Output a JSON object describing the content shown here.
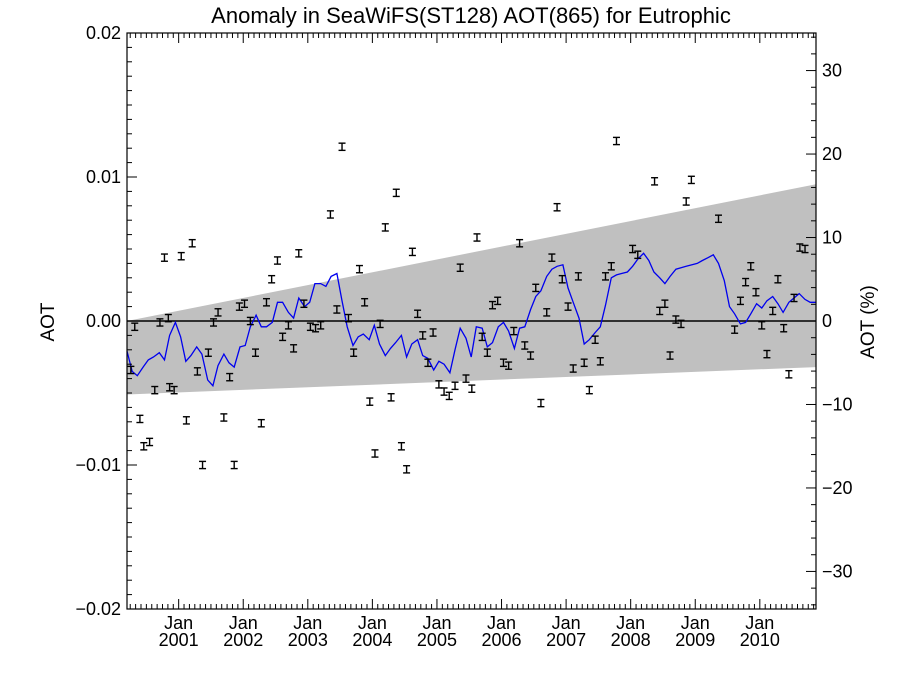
{
  "chart_data": {
    "type": "scatter",
    "title": "Anomaly in SeaWiFS(ST128) AOT(865) for Eutrophic",
    "ylabel": "AOT",
    "ylabel_right": "AOT (%)",
    "xlabel": "",
    "xlim": [
      2000.2,
      2010.87
    ],
    "ylim": [
      -0.02,
      0.02
    ],
    "ylim_right": [
      -34.5,
      34.5
    ],
    "x_ticks": [
      {
        "x": 2001.0,
        "label_top": "Jan",
        "label_bottom": "2001"
      },
      {
        "x": 2002.0,
        "label_top": "Jan",
        "label_bottom": "2002"
      },
      {
        "x": 2003.0,
        "label_top": "Jan",
        "label_bottom": "2003"
      },
      {
        "x": 2004.0,
        "label_top": "Jan",
        "label_bottom": "2004"
      },
      {
        "x": 2005.0,
        "label_top": "Jan",
        "label_bottom": "2005"
      },
      {
        "x": 2006.0,
        "label_top": "Jan",
        "label_bottom": "2006"
      },
      {
        "x": 2007.0,
        "label_top": "Jan",
        "label_bottom": "2007"
      },
      {
        "x": 2008.0,
        "label_top": "Jan",
        "label_bottom": "2008"
      },
      {
        "x": 2009.0,
        "label_top": "Jan",
        "label_bottom": "2009"
      },
      {
        "x": 2010.0,
        "label_top": "Jan",
        "label_bottom": "2010"
      }
    ],
    "y_ticks_left": [
      {
        "value": 0.02,
        "label": "0.02"
      },
      {
        "value": 0.01,
        "label": "0.01"
      },
      {
        "value": 0.0,
        "label": "0.00"
      },
      {
        "value": -0.01,
        "label": "−0.01"
      },
      {
        "value": -0.02,
        "label": "−0.02"
      }
    ],
    "y_ticks_right": [
      {
        "value": 30,
        "label": "30"
      },
      {
        "value": 20,
        "label": "20"
      },
      {
        "value": 10,
        "label": "10"
      },
      {
        "value": 0,
        "label": "0"
      },
      {
        "value": -10,
        "label": "−10"
      },
      {
        "value": -20,
        "label": "−20"
      },
      {
        "value": -30,
        "label": "−30"
      }
    ],
    "band": {
      "color": "#c0c0c0",
      "upper": [
        [
          2000.2,
          0.0
        ],
        [
          2010.87,
          0.0095
        ]
      ],
      "lower": [
        [
          2000.2,
          -0.0051
        ],
        [
          2010.87,
          -0.0032
        ]
      ]
    },
    "zero_line": 0.0,
    "points_series": {
      "color": "#000000",
      "points": [
        [
          2000.26,
          -0.0034
        ],
        [
          2000.32,
          -0.0004
        ],
        [
          2000.4,
          -0.0068
        ],
        [
          2000.46,
          -0.0087
        ],
        [
          2000.55,
          -0.0084
        ],
        [
          2000.63,
          -0.0048
        ],
        [
          2000.71,
          -0.0001
        ],
        [
          2000.78,
          0.0044
        ],
        [
          2000.84,
          0.0002
        ],
        [
          2000.86,
          -0.0046
        ],
        [
          2000.93,
          -0.0048
        ],
        [
          2001.04,
          0.0045
        ],
        [
          2001.12,
          -0.0069
        ],
        [
          2001.21,
          0.0054
        ],
        [
          2001.29,
          -0.0035
        ],
        [
          2001.37,
          -0.01
        ],
        [
          2001.46,
          -0.0022
        ],
        [
          2001.54,
          -0.0001
        ],
        [
          2001.61,
          0.0006
        ],
        [
          2001.7,
          -0.0067
        ],
        [
          2001.79,
          -0.0039
        ],
        [
          2001.86,
          -0.01
        ],
        [
          2001.94,
          0.001
        ],
        [
          2002.02,
          0.0012
        ],
        [
          2002.11,
          0.0
        ],
        [
          2002.19,
          -0.0022
        ],
        [
          2002.28,
          -0.0071
        ],
        [
          2002.36,
          0.0013
        ],
        [
          2002.44,
          0.0029
        ],
        [
          2002.53,
          0.0042
        ],
        [
          2002.61,
          -0.0011
        ],
        [
          2002.7,
          -0.0003
        ],
        [
          2002.78,
          -0.0019
        ],
        [
          2002.86,
          0.0047
        ],
        [
          2002.94,
          0.0012
        ],
        [
          2003.04,
          -0.0004
        ],
        [
          2003.12,
          -0.0005
        ],
        [
          2003.2,
          -0.0003
        ],
        [
          2003.35,
          0.0074
        ],
        [
          2003.45,
          0.0008
        ],
        [
          2003.53,
          0.0121
        ],
        [
          2003.63,
          0.0002
        ],
        [
          2003.71,
          -0.0022
        ],
        [
          2003.8,
          0.0036
        ],
        [
          2003.88,
          0.0013
        ],
        [
          2003.96,
          -0.0056
        ],
        [
          2004.04,
          -0.0092
        ],
        [
          2004.12,
          -0.0002
        ],
        [
          2004.2,
          0.0065
        ],
        [
          2004.29,
          -0.0053
        ],
        [
          2004.37,
          0.0089
        ],
        [
          2004.45,
          -0.0087
        ],
        [
          2004.53,
          -0.0103
        ],
        [
          2004.62,
          0.0048
        ],
        [
          2004.7,
          0.0005
        ],
        [
          2004.78,
          -0.001
        ],
        [
          2004.86,
          -0.0029
        ],
        [
          2004.94,
          -0.0008
        ],
        [
          2005.03,
          -0.0044
        ],
        [
          2005.11,
          -0.0049
        ],
        [
          2005.19,
          -0.0052
        ],
        [
          2005.28,
          -0.0045
        ],
        [
          2005.36,
          0.0037
        ],
        [
          2005.45,
          -0.004
        ],
        [
          2005.54,
          -0.0047
        ],
        [
          2005.62,
          0.0058
        ],
        [
          2005.7,
          -0.0011
        ],
        [
          2005.78,
          -0.0022
        ],
        [
          2005.86,
          0.0011
        ],
        [
          2005.94,
          0.0014
        ],
        [
          2006.03,
          -0.0029
        ],
        [
          2006.11,
          -0.0031
        ],
        [
          2006.19,
          -0.0007
        ],
        [
          2006.28,
          0.0054
        ],
        [
          2006.36,
          -0.0017
        ],
        [
          2006.45,
          -0.0024
        ],
        [
          2006.53,
          0.0023
        ],
        [
          2006.61,
          -0.0057
        ],
        [
          2006.7,
          0.0006
        ],
        [
          2006.78,
          0.0044
        ],
        [
          2006.86,
          0.0079
        ],
        [
          2006.94,
          0.0029
        ],
        [
          2007.03,
          0.001
        ],
        [
          2007.11,
          -0.0033
        ],
        [
          2007.19,
          0.0031
        ],
        [
          2007.28,
          -0.0029
        ],
        [
          2007.36,
          -0.0048
        ],
        [
          2007.45,
          -0.0013
        ],
        [
          2007.53,
          -0.0028
        ],
        [
          2007.61,
          0.0031
        ],
        [
          2007.7,
          0.0038
        ],
        [
          2007.78,
          0.0125
        ],
        [
          2008.03,
          0.005
        ],
        [
          2008.11,
          0.0046
        ],
        [
          2008.37,
          0.0097
        ],
        [
          2008.45,
          0.0007
        ],
        [
          2008.53,
          0.0012
        ],
        [
          2008.61,
          -0.0024
        ],
        [
          2008.7,
          0.0001
        ],
        [
          2008.78,
          -0.0002
        ],
        [
          2008.86,
          0.0083
        ],
        [
          2008.94,
          0.0098
        ],
        [
          2009.36,
          0.0071
        ],
        [
          2009.61,
          -0.0006
        ],
        [
          2009.7,
          0.0014
        ],
        [
          2009.78,
          0.0027
        ],
        [
          2009.86,
          0.0038
        ],
        [
          2009.94,
          0.002
        ],
        [
          2010.03,
          -0.0003
        ],
        [
          2010.11,
          -0.0023
        ],
        [
          2010.2,
          0.0007
        ],
        [
          2010.28,
          0.0029
        ],
        [
          2010.37,
          -0.0005
        ],
        [
          2010.45,
          -0.0037
        ],
        [
          2010.53,
          0.0016
        ],
        [
          2010.62,
          0.0051
        ],
        [
          2010.7,
          0.005
        ]
      ]
    },
    "line_series": {
      "color": "#0000ee",
      "points": [
        [
          2000.2,
          -0.0021
        ],
        [
          2000.28,
          -0.0035
        ],
        [
          2000.36,
          -0.0038
        ],
        [
          2000.45,
          -0.0032
        ],
        [
          2000.53,
          -0.0027
        ],
        [
          2000.61,
          -0.0025
        ],
        [
          2000.7,
          -0.0022
        ],
        [
          2000.78,
          -0.0027
        ],
        [
          2000.86,
          -0.001
        ],
        [
          2000.95,
          -0.0001
        ],
        [
          2001.03,
          -0.0011
        ],
        [
          2001.11,
          -0.0028
        ],
        [
          2001.19,
          -0.0024
        ],
        [
          2001.28,
          -0.0018
        ],
        [
          2001.36,
          -0.0023
        ],
        [
          2001.45,
          -0.0041
        ],
        [
          2001.53,
          -0.0045
        ],
        [
          2001.61,
          -0.0031
        ],
        [
          2001.7,
          -0.0023
        ],
        [
          2001.78,
          -0.0029
        ],
        [
          2001.86,
          -0.0032
        ],
        [
          2001.95,
          -0.0018
        ],
        [
          2002.03,
          -0.0017
        ],
        [
          2002.11,
          -0.0004
        ],
        [
          2002.2,
          0.0004
        ],
        [
          2002.28,
          -0.0004
        ],
        [
          2002.36,
          -0.0004
        ],
        [
          2002.45,
          -0.0001
        ],
        [
          2002.53,
          0.0013
        ],
        [
          2002.61,
          0.0013
        ],
        [
          2002.7,
          0.0006
        ],
        [
          2002.78,
          0.0002
        ],
        [
          2002.86,
          0.0016
        ],
        [
          2002.95,
          0.001
        ],
        [
          2003.03,
          0.0013
        ],
        [
          2003.11,
          0.0026
        ],
        [
          2003.2,
          0.0026
        ],
        [
          2003.28,
          0.0024
        ],
        [
          2003.36,
          0.0031
        ],
        [
          2003.45,
          0.0033
        ],
        [
          2003.53,
          0.0014
        ],
        [
          2003.61,
          -0.0004
        ],
        [
          2003.7,
          -0.0017
        ],
        [
          2003.78,
          -0.0011
        ],
        [
          2003.86,
          -0.0009
        ],
        [
          2003.95,
          -0.0013
        ],
        [
          2004.03,
          -0.0003
        ],
        [
          2004.11,
          -0.0016
        ],
        [
          2004.2,
          -0.0024
        ],
        [
          2004.28,
          -0.0019
        ],
        [
          2004.36,
          -0.0015
        ],
        [
          2004.45,
          -0.001
        ],
        [
          2004.53,
          -0.0025
        ],
        [
          2004.61,
          -0.0016
        ],
        [
          2004.7,
          -0.0013
        ],
        [
          2004.78,
          -0.0024
        ],
        [
          2004.86,
          -0.0026
        ],
        [
          2004.95,
          -0.0034
        ],
        [
          2005.03,
          -0.0028
        ],
        [
          2005.11,
          -0.003
        ],
        [
          2005.2,
          -0.0036
        ],
        [
          2005.28,
          -0.002
        ],
        [
          2005.36,
          -0.0005
        ],
        [
          2005.45,
          -0.0012
        ],
        [
          2005.53,
          -0.0025
        ],
        [
          2005.61,
          -0.0004
        ],
        [
          2005.7,
          -0.0005
        ],
        [
          2005.78,
          -0.0018
        ],
        [
          2005.86,
          -0.0015
        ],
        [
          2005.95,
          -0.0004
        ],
        [
          2006.03,
          -0.0001
        ],
        [
          2006.11,
          -0.0007
        ],
        [
          2006.2,
          -0.0019
        ],
        [
          2006.28,
          -0.0005
        ],
        [
          2006.36,
          -0.0004
        ],
        [
          2006.45,
          0.0008
        ],
        [
          2006.53,
          0.0017
        ],
        [
          2006.61,
          0.0021
        ],
        [
          2006.7,
          0.0031
        ],
        [
          2006.78,
          0.0036
        ],
        [
          2006.86,
          0.0038
        ],
        [
          2006.95,
          0.0039
        ],
        [
          2007.03,
          0.0023
        ],
        [
          2007.11,
          0.0013
        ],
        [
          2007.2,
          0.0002
        ],
        [
          2007.28,
          -0.0016
        ],
        [
          2007.36,
          -0.0013
        ],
        [
          2007.45,
          -0.0008
        ],
        [
          2007.53,
          -0.0004
        ],
        [
          2007.61,
          0.0011
        ],
        [
          2007.7,
          0.003
        ],
        [
          2007.78,
          0.0032
        ],
        [
          2007.86,
          0.0033
        ],
        [
          2007.95,
          0.0034
        ],
        [
          2008.03,
          0.0038
        ],
        [
          2008.11,
          0.0043
        ],
        [
          2008.2,
          0.0047
        ],
        [
          2008.28,
          0.0042
        ],
        [
          2008.36,
          0.0034
        ],
        [
          2008.45,
          0.003
        ],
        [
          2008.53,
          0.0026
        ],
        [
          2008.61,
          0.0031
        ],
        [
          2008.7,
          0.0036
        ],
        [
          2008.78,
          0.0037
        ],
        [
          2008.86,
          0.0038
        ],
        [
          2008.95,
          0.0039
        ],
        [
          2009.03,
          0.004
        ],
        [
          2009.11,
          0.0042
        ],
        [
          2009.2,
          0.0044
        ],
        [
          2009.28,
          0.0046
        ],
        [
          2009.36,
          0.004
        ],
        [
          2009.45,
          0.0028
        ],
        [
          2009.53,
          0.001
        ],
        [
          2009.61,
          0.0005
        ],
        [
          2009.7,
          -0.0002
        ],
        [
          2009.78,
          -0.0001
        ],
        [
          2009.86,
          0.0005
        ],
        [
          2009.95,
          0.0012
        ],
        [
          2010.03,
          0.0009
        ],
        [
          2010.11,
          0.0014
        ],
        [
          2010.2,
          0.0017
        ],
        [
          2010.28,
          0.0012
        ],
        [
          2010.36,
          0.0006
        ],
        [
          2010.45,
          0.0013
        ],
        [
          2010.53,
          0.0016
        ],
        [
          2010.61,
          0.0019
        ],
        [
          2010.7,
          0.0015
        ],
        [
          2010.78,
          0.0013
        ],
        [
          2010.87,
          0.0013
        ]
      ]
    },
    "error_bar_half_width_aot": 0.00025,
    "grid": false,
    "legend": "none"
  }
}
